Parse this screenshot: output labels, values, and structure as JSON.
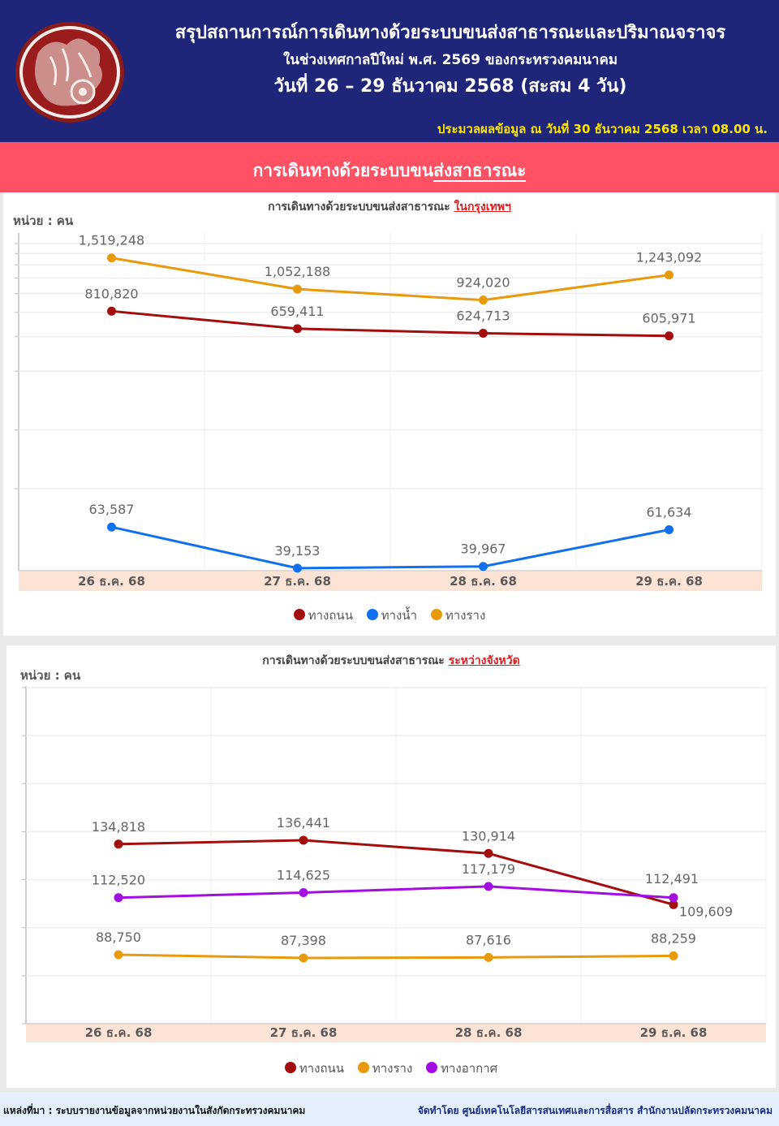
{
  "header": {
    "title_line1": "สรุปสถานการณ์การเดินทางด้วยระบบขนส่งสาธารณะและปริมาณจราจร",
    "title_line2": "ในช่วงเทศกาลปีใหม่ พ.ศ. 2569 ของกระทรวงคมนาคม",
    "title_line3": "วันที่  26 – 29 ธันวาคม 2568  (สะสม 4 วัน)",
    "as_of": "ประมวลผลข้อมูล ณ วันที่  30 ธันวาคม 2568 เวลา 08.00 น.",
    "logo": "ministry-seal-icon"
  },
  "section": {
    "title_part1": "การเดินทางด้วยระบบขน",
    "title_part2": "ส่งสาธารณะ"
  },
  "colors": {
    "header_bg": "#1f267a",
    "section_bg": "#fe5164",
    "road": "#a30d0d",
    "water": "#1070f0",
    "rail": "#e89a0c",
    "air": "#a40ce4",
    "x_band": "#fbe3d6"
  },
  "chart_data": [
    {
      "type": "line",
      "title_prefix": "การเดินทางด้วยระบบขนส่งสาธารณะ",
      "title_highlight": "ในกรุงเทพฯ",
      "unit_label": "หน่วย : คน",
      "y_scale": "log",
      "ylim": [
        38000,
        2000000
      ],
      "y_gridlines": [
        100000,
        200000,
        400000,
        600000,
        800000,
        1000000,
        1200000,
        1400000,
        1600000,
        1800000
      ],
      "grid": true,
      "legend_position": "bottom-center",
      "categories": [
        "26 ธ.ค. 68",
        "27 ธ.ค. 68",
        "28 ธ.ค. 68",
        "29 ธ.ค. 68"
      ],
      "series": [
        {
          "name": "ทางถนน",
          "color": "#a30d0d",
          "values": [
            810820,
            659411,
            624713,
            605971
          ],
          "labels": [
            "810,820",
            "659,411",
            "624,713",
            "605,971"
          ]
        },
        {
          "name": "ทางน้ำ",
          "color": "#1070f0",
          "values": [
            63587,
            39153,
            39967,
            61634
          ],
          "labels": [
            "63,587",
            "39,153",
            "39,967",
            "61,634"
          ]
        },
        {
          "name": "ทางราง",
          "color": "#e89a0c",
          "values": [
            1519248,
            1052188,
            924020,
            1243092
          ],
          "labels": [
            "1,519,248",
            "1,052,188",
            "924,020",
            "1,243,092"
          ]
        }
      ],
      "legend": [
        "ทางถนน",
        "ทางน้ำ",
        "ทางราง"
      ]
    },
    {
      "type": "line",
      "title_prefix": "การเดินทางด้วยระบบขนส่งสาธารณะ",
      "title_highlight": "ระหว่างจังหวัด",
      "unit_label": "หน่วย : คน",
      "y_scale": "linear",
      "ylim": [
        60000,
        200000
      ],
      "y_gridlines": [
        60000,
        80000,
        100000,
        120000,
        140000,
        160000,
        180000,
        200000
      ],
      "grid": true,
      "legend_position": "bottom-center",
      "categories": [
        "26 ธ.ค. 68",
        "27 ธ.ค. 68",
        "28 ธ.ค. 68",
        "29 ธ.ค. 68"
      ],
      "series": [
        {
          "name": "ทางถนน",
          "color": "#a30d0d",
          "values": [
            134818,
            136441,
            130914,
            109609
          ],
          "labels": [
            "134,818",
            "136,441",
            "130,914",
            "109,609"
          ]
        },
        {
          "name": "ทางราง",
          "color": "#e89a0c",
          "values": [
            88750,
            87398,
            87616,
            88259
          ],
          "labels": [
            "88,750",
            "87,398",
            "87,616",
            "88,259"
          ]
        },
        {
          "name": "ทางอากาศ",
          "color": "#a40ce4",
          "values": [
            112520,
            114625,
            117179,
            112491
          ],
          "labels": [
            "112,520",
            "114,625",
            "117,179",
            "112,491"
          ]
        }
      ],
      "legend": [
        "ทางถนน",
        "ทางราง",
        "ทางอากาศ"
      ]
    }
  ],
  "footer": {
    "source": "แหล่งที่มา : ระบบรายงานข้อมูลจากหน่วยงานในสังกัดกระทรวงคมนาคม",
    "prepared_by": "จัดทำโดย ศูนย์เทคโนโลยีสารสนเทศและการสื่อสาร สำนักงานปลัดกระทรวงคมนาคม"
  }
}
